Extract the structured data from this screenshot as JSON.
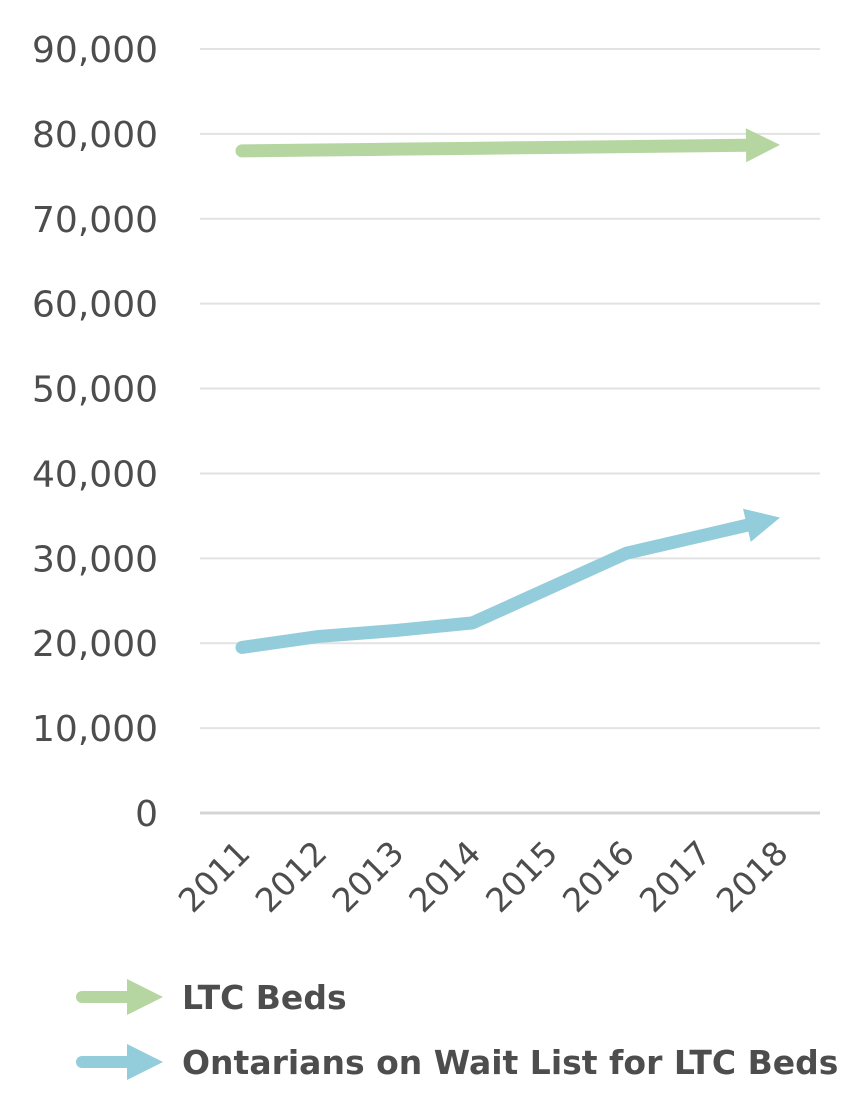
{
  "chart_data": {
    "type": "line",
    "categories": [
      "2011",
      "2012",
      "2013",
      "2014",
      "2015",
      "2016",
      "2017",
      "2018"
    ],
    "ylim": [
      0,
      90000
    ],
    "yticks": [
      0,
      10000,
      20000,
      30000,
      40000,
      50000,
      60000,
      70000,
      80000,
      90000
    ],
    "ytick_labels": [
      "0",
      "10,000",
      "20,000",
      "30,000",
      "40,000",
      "50,000",
      "60,000",
      "70,000",
      "80,000",
      "90,000"
    ],
    "grid": true,
    "legend_position": "bottom",
    "series": [
      {
        "name": "LTC Beds",
        "color": "#b5d6a0",
        "values": [
          78000,
          78100,
          78200,
          78300,
          78400,
          78500,
          78600,
          78700
        ]
      },
      {
        "name": "Ontarians on Wait List for LTC Beds",
        "color": "#93cddb",
        "values": [
          19500,
          20800,
          21500,
          22400,
          26500,
          30600,
          32700,
          34800
        ]
      }
    ]
  }
}
